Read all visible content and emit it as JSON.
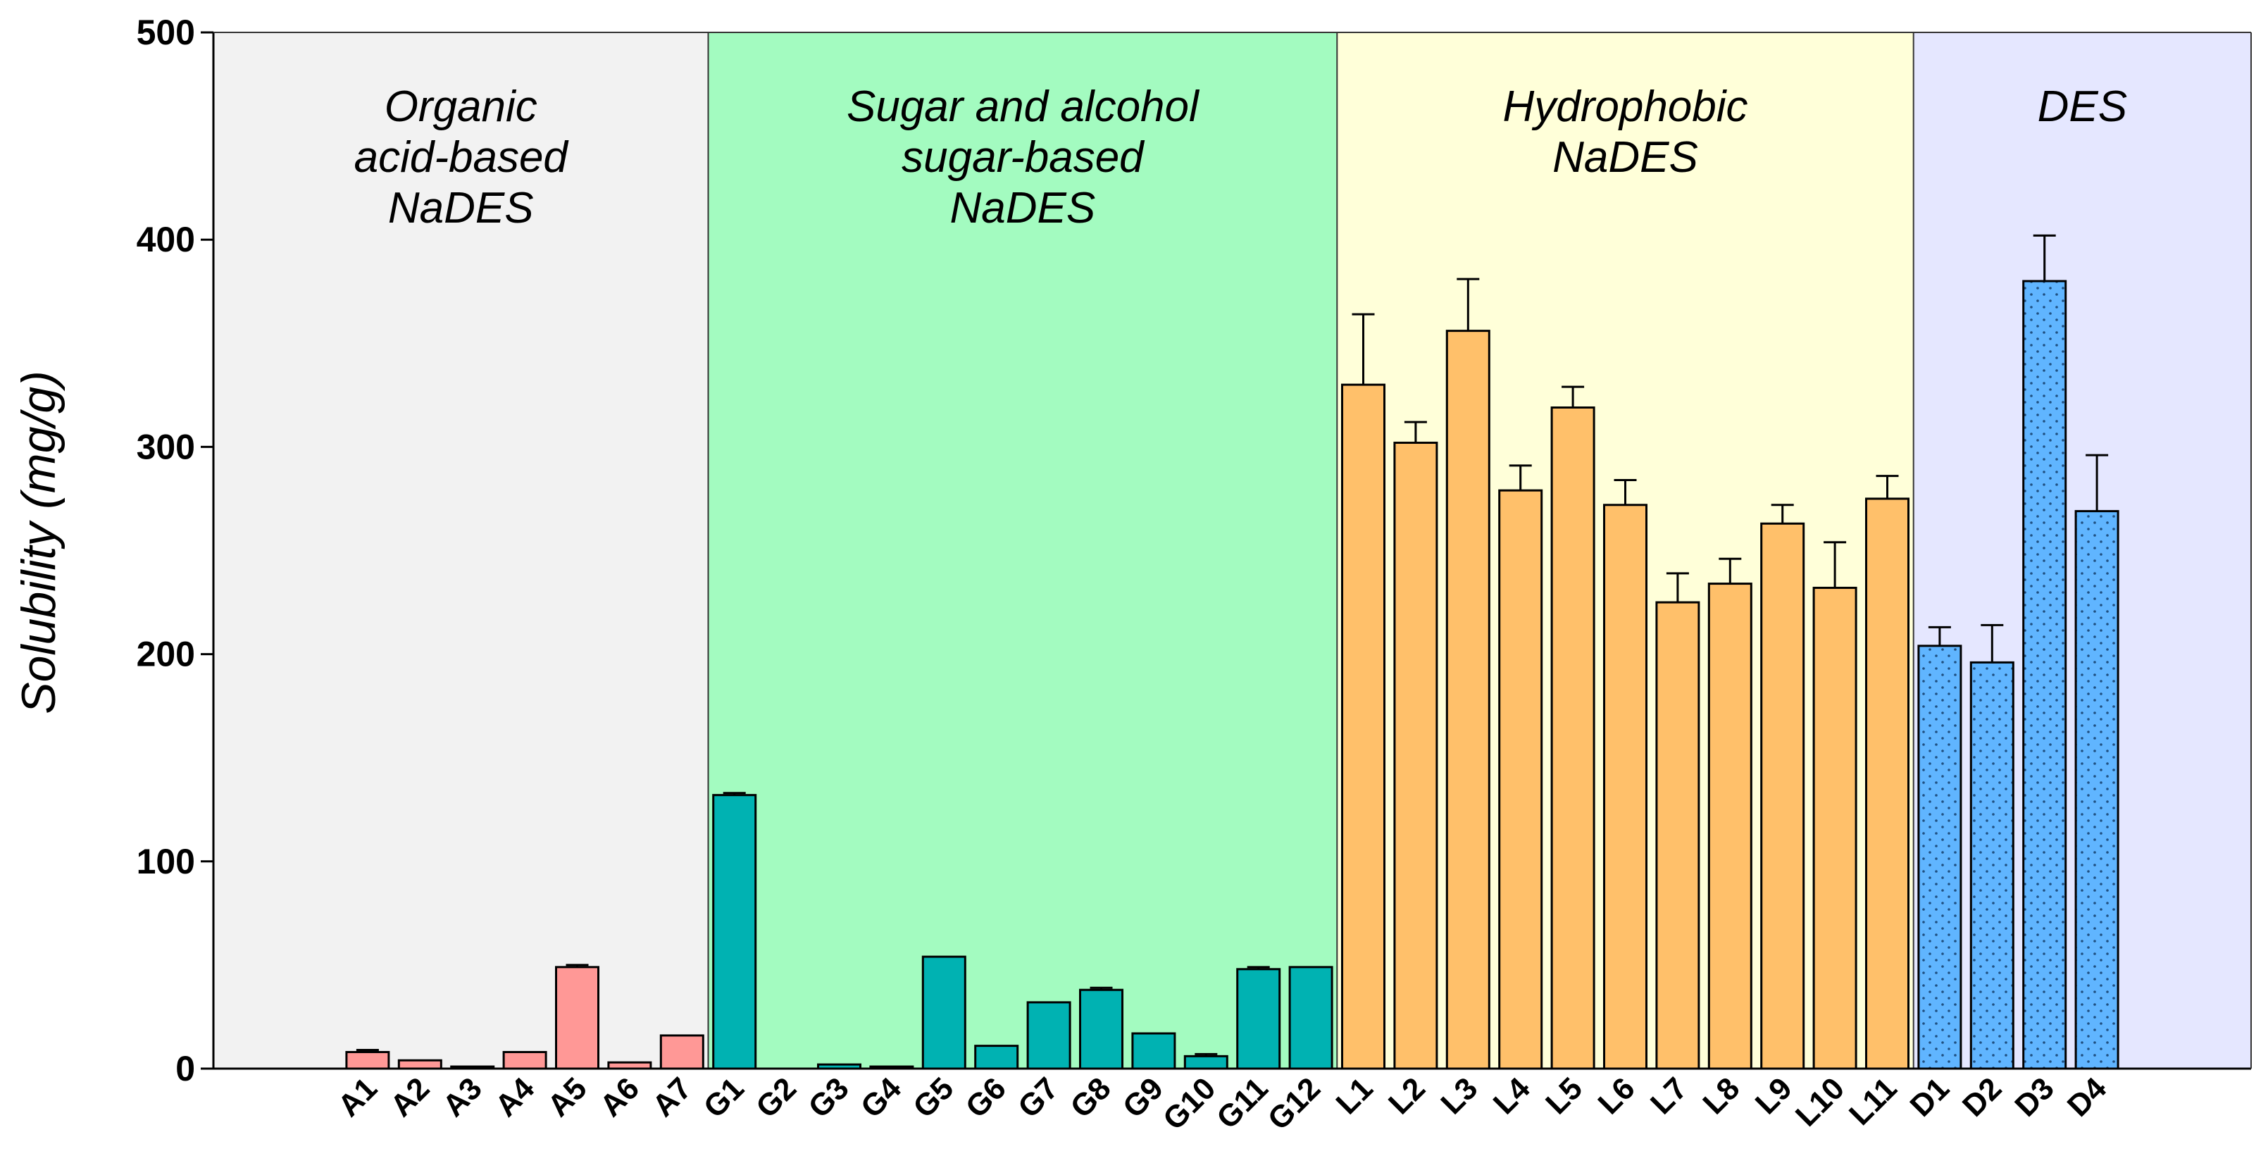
{
  "chart_data": {
    "type": "bar",
    "title": "",
    "xlabel": "",
    "ylabel": "Solubility (mg/g)",
    "ylim": [
      0,
      500
    ],
    "yticks": [
      "0",
      "100",
      "200",
      "300",
      "400",
      "500"
    ],
    "grid": false,
    "groups": [
      {
        "name": "organic-acid",
        "label_lines": [
          "Organic",
          "acid-based",
          "NaDES"
        ],
        "background": "#f2f2f2",
        "bar_color": "#ff9896",
        "pattern": "none",
        "categories": [
          "A1",
          "A2",
          "A3",
          "A4",
          "A5",
          "A6",
          "A7"
        ],
        "values": [
          8,
          4,
          1,
          8,
          49,
          3,
          16
        ],
        "errors": [
          1,
          0,
          0,
          0,
          1,
          0,
          0
        ]
      },
      {
        "name": "sugar",
        "label_lines": [
          "Sugar and alcohol",
          "sugar-based",
          "NaDES"
        ],
        "background": "#a3fbc0",
        "bar_color": "#00b2b2",
        "pattern": "none",
        "categories": [
          "G1",
          "G2",
          "G3",
          "G4",
          "G5",
          "G6",
          "G7",
          "G8",
          "G9",
          "G10",
          "G11",
          "G12"
        ],
        "values": [
          132,
          0,
          2,
          1,
          54,
          11,
          32,
          38,
          17,
          6,
          48,
          49
        ],
        "errors": [
          1,
          0,
          0,
          0,
          0,
          0,
          0,
          1,
          0,
          1,
          1,
          0
        ]
      },
      {
        "name": "hydrophobic",
        "label_lines": [
          "Hydrophobic",
          "NaDES"
        ],
        "background": "#ffffd9",
        "bar_color": "#ffc06a",
        "pattern": "none",
        "categories": [
          "L1",
          "L2",
          "L3",
          "L4",
          "L5",
          "L6",
          "L7",
          "L8",
          "L9",
          "L10",
          "L11"
        ],
        "values": [
          330,
          302,
          356,
          279,
          319,
          272,
          225,
          234,
          263,
          232,
          275
        ],
        "errors": [
          34,
          10,
          25,
          12,
          10,
          12,
          14,
          12,
          9,
          22,
          11
        ]
      },
      {
        "name": "des",
        "label_lines": [
          "DES"
        ],
        "background": "#e5e7ff",
        "bar_color": "#60b5ff",
        "pattern": "dots",
        "categories": [
          "D1",
          "D2",
          "D3",
          "D4"
        ],
        "values": [
          204,
          196,
          380,
          269
        ],
        "errors": [
          9,
          18,
          22,
          27
        ]
      }
    ]
  }
}
